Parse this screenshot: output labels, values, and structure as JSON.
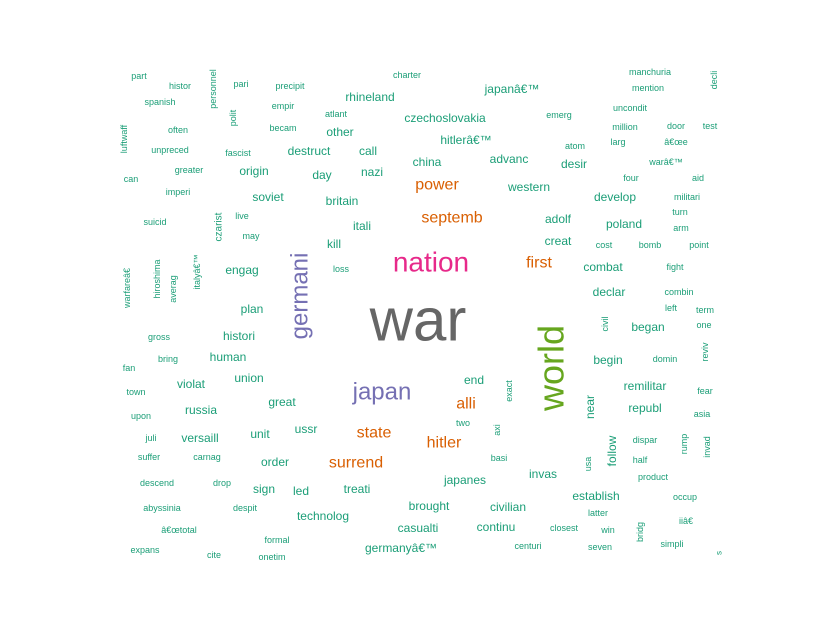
{
  "chart_data": {
    "type": "wordcloud",
    "colors": {
      "tier1": "#666666",
      "tier2": "#66A61E",
      "tier3": "#E7298A",
      "tier4": "#7570B3",
      "tier5": "#D95F02",
      "tier6": "#1B9E77"
    },
    "words": [
      {
        "text": "war",
        "tier": 1
      },
      {
        "text": "world",
        "tier": 2
      },
      {
        "text": "nation",
        "tier": 3
      },
      {
        "text": "germani",
        "tier": 4
      },
      {
        "text": "japan",
        "tier": 4
      },
      {
        "text": "septemb",
        "tier": 5
      },
      {
        "text": "state",
        "tier": 5
      },
      {
        "text": "power",
        "tier": 5
      },
      {
        "text": "first",
        "tier": 5
      },
      {
        "text": "surrend",
        "tier": 5
      },
      {
        "text": "hitler",
        "tier": 5
      },
      {
        "text": "alli",
        "tier": 5
      },
      {
        "text": "part",
        "tier": 6
      },
      {
        "text": "histor",
        "tier": 6
      },
      {
        "text": "personnel",
        "tier": 6
      },
      {
        "text": "pari",
        "tier": 6
      },
      {
        "text": "precipit",
        "tier": 6
      },
      {
        "text": "charter",
        "tier": 6
      },
      {
        "text": "manchuria",
        "tier": 6
      },
      {
        "text": "decli",
        "tier": 6
      },
      {
        "text": "mention",
        "tier": 6
      },
      {
        "text": "spanish",
        "tier": 6
      },
      {
        "text": "polit",
        "tier": 6
      },
      {
        "text": "empir",
        "tier": 6
      },
      {
        "text": "rhineland",
        "tier": 6
      },
      {
        "text": "japanâ€™",
        "tier": 6
      },
      {
        "text": "uncondit",
        "tier": 6
      },
      {
        "text": "atlant",
        "tier": 6
      },
      {
        "text": "czechoslovakia",
        "tier": 6
      },
      {
        "text": "emerg",
        "tier": 6
      },
      {
        "text": "luftwaff",
        "tier": 6
      },
      {
        "text": "often",
        "tier": 6
      },
      {
        "text": "becam",
        "tier": 6
      },
      {
        "text": "other",
        "tier": 6
      },
      {
        "text": "million",
        "tier": 6
      },
      {
        "text": "door",
        "tier": 6
      },
      {
        "text": "test",
        "tier": 6
      },
      {
        "text": "hitlerâ€™",
        "tier": 6
      },
      {
        "text": "atom",
        "tier": 6
      },
      {
        "text": "larg",
        "tier": 6
      },
      {
        "text": "â€œe",
        "tier": 6
      },
      {
        "text": "unpreced",
        "tier": 6
      },
      {
        "text": "fascist",
        "tier": 6
      },
      {
        "text": "destruct",
        "tier": 6
      },
      {
        "text": "call",
        "tier": 6
      },
      {
        "text": "advanc",
        "tier": 6
      },
      {
        "text": "china",
        "tier": 6
      },
      {
        "text": "desir",
        "tier": 6
      },
      {
        "text": "warâ€™",
        "tier": 6
      },
      {
        "text": "greater",
        "tier": 6
      },
      {
        "text": "origin",
        "tier": 6
      },
      {
        "text": "day",
        "tier": 6
      },
      {
        "text": "nazi",
        "tier": 6
      },
      {
        "text": "four",
        "tier": 6
      },
      {
        "text": "aid",
        "tier": 6
      },
      {
        "text": "can",
        "tier": 6
      },
      {
        "text": "western",
        "tier": 6
      },
      {
        "text": "imperi",
        "tier": 6
      },
      {
        "text": "soviet",
        "tier": 6
      },
      {
        "text": "britain",
        "tier": 6
      },
      {
        "text": "develop",
        "tier": 6
      },
      {
        "text": "militari",
        "tier": 6
      },
      {
        "text": "czarist",
        "tier": 6
      },
      {
        "text": "live",
        "tier": 6
      },
      {
        "text": "turn",
        "tier": 6
      },
      {
        "text": "suicid",
        "tier": 6
      },
      {
        "text": "itali",
        "tier": 6
      },
      {
        "text": "adolf",
        "tier": 6
      },
      {
        "text": "poland",
        "tier": 6
      },
      {
        "text": "arm",
        "tier": 6
      },
      {
        "text": "may",
        "tier": 6
      },
      {
        "text": "creat",
        "tier": 6
      },
      {
        "text": "kill",
        "tier": 6
      },
      {
        "text": "cost",
        "tier": 6
      },
      {
        "text": "bomb",
        "tier": 6
      },
      {
        "text": "point",
        "tier": 6
      },
      {
        "text": "italyâ€™",
        "tier": 6
      },
      {
        "text": "hiroshima",
        "tier": 6
      },
      {
        "text": "warfareâ€",
        "tier": 6
      },
      {
        "text": "engag",
        "tier": 6
      },
      {
        "text": "loss",
        "tier": 6
      },
      {
        "text": "combat",
        "tier": 6
      },
      {
        "text": "fight",
        "tier": 6
      },
      {
        "text": "averag",
        "tier": 6
      },
      {
        "text": "declar",
        "tier": 6
      },
      {
        "text": "combin",
        "tier": 6
      },
      {
        "text": "plan",
        "tier": 6
      },
      {
        "text": "civil",
        "tier": 6
      },
      {
        "text": "left",
        "tier": 6
      },
      {
        "text": "term",
        "tier": 6
      },
      {
        "text": "began",
        "tier": 6
      },
      {
        "text": "one",
        "tier": 6
      },
      {
        "text": "gross",
        "tier": 6
      },
      {
        "text": "histori",
        "tier": 6
      },
      {
        "text": "reviv",
        "tier": 6
      },
      {
        "text": "fan",
        "tier": 6
      },
      {
        "text": "bring",
        "tier": 6
      },
      {
        "text": "human",
        "tier": 6
      },
      {
        "text": "begin",
        "tier": 6
      },
      {
        "text": "domin",
        "tier": 6
      },
      {
        "text": "union",
        "tier": 6
      },
      {
        "text": "end",
        "tier": 6
      },
      {
        "text": "town",
        "tier": 6
      },
      {
        "text": "violat",
        "tier": 6
      },
      {
        "text": "exact",
        "tier": 6
      },
      {
        "text": "remilitar",
        "tier": 6
      },
      {
        "text": "fear",
        "tier": 6
      },
      {
        "text": "great",
        "tier": 6
      },
      {
        "text": "russia",
        "tier": 6
      },
      {
        "text": "near",
        "tier": 6
      },
      {
        "text": "republ",
        "tier": 6
      },
      {
        "text": "upon",
        "tier": 6
      },
      {
        "text": "asia",
        "tier": 6
      },
      {
        "text": "two",
        "tier": 6
      },
      {
        "text": "ussr",
        "tier": 6
      },
      {
        "text": "axi",
        "tier": 6
      },
      {
        "text": "juli",
        "tier": 6
      },
      {
        "text": "versaill",
        "tier": 6
      },
      {
        "text": "unit",
        "tier": 6
      },
      {
        "text": "follow",
        "tier": 6
      },
      {
        "text": "dispar",
        "tier": 6
      },
      {
        "text": "rump",
        "tier": 6
      },
      {
        "text": "invad",
        "tier": 6
      },
      {
        "text": "suffer",
        "tier": 6
      },
      {
        "text": "carnag",
        "tier": 6
      },
      {
        "text": "order",
        "tier": 6
      },
      {
        "text": "basi",
        "tier": 6
      },
      {
        "text": "usa",
        "tier": 6
      },
      {
        "text": "half",
        "tier": 6
      },
      {
        "text": "invas",
        "tier": 6
      },
      {
        "text": "japanes",
        "tier": 6
      },
      {
        "text": "product",
        "tier": 6
      },
      {
        "text": "descend",
        "tier": 6
      },
      {
        "text": "drop",
        "tier": 6
      },
      {
        "text": "sign",
        "tier": 6
      },
      {
        "text": "led",
        "tier": 6
      },
      {
        "text": "treati",
        "tier": 6
      },
      {
        "text": "establish",
        "tier": 6
      },
      {
        "text": "occup",
        "tier": 6
      },
      {
        "text": "abyssinia",
        "tier": 6
      },
      {
        "text": "despit",
        "tier": 6
      },
      {
        "text": "brought",
        "tier": 6
      },
      {
        "text": "civilian",
        "tier": 6
      },
      {
        "text": "latter",
        "tier": 6
      },
      {
        "text": "technolog",
        "tier": 6
      },
      {
        "text": "iiâ€",
        "tier": 6
      },
      {
        "text": "â€œtotal",
        "tier": 6
      },
      {
        "text": "casualti",
        "tier": 6
      },
      {
        "text": "continu",
        "tier": 6
      },
      {
        "text": "closest",
        "tier": 6
      },
      {
        "text": "win",
        "tier": 6
      },
      {
        "text": "bridg",
        "tier": 6
      },
      {
        "text": "formal",
        "tier": 6
      },
      {
        "text": "simpli",
        "tier": 6
      },
      {
        "text": "centuri",
        "tier": 6
      },
      {
        "text": "expans",
        "tier": 6
      },
      {
        "text": "germanyâ€™",
        "tier": 6
      },
      {
        "text": "seven",
        "tier": 6
      },
      {
        "text": "cite",
        "tier": 6
      },
      {
        "text": "onetim",
        "tier": 6
      },
      {
        "text": "s",
        "tier": 6
      }
    ]
  }
}
